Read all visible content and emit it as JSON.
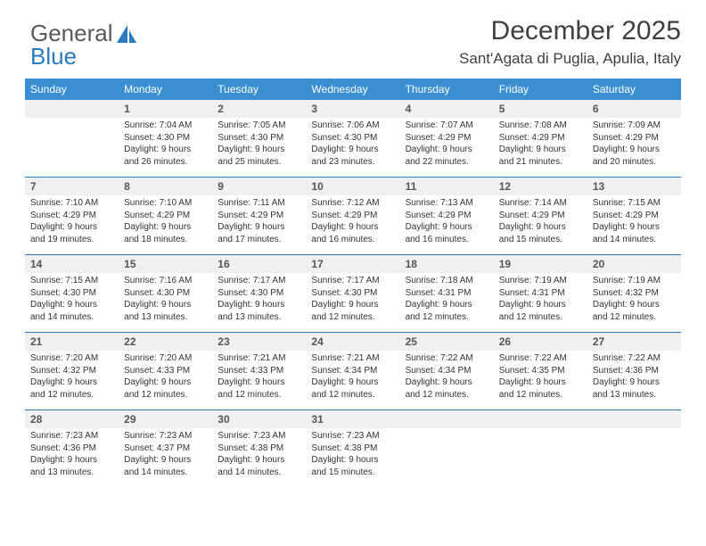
{
  "logo": {
    "text_a": "General",
    "text_b": "Blue"
  },
  "header": {
    "month": "December 2025",
    "location": "Sant'Agata di Puglia, Apulia, Italy"
  },
  "colors": {
    "accent": "#3a8fd0",
    "border": "#2a7ac0",
    "daynum_bg": "#f0f0f0",
    "text": "#333333"
  },
  "dayNames": [
    "Sunday",
    "Monday",
    "Tuesday",
    "Wednesday",
    "Thursday",
    "Friday",
    "Saturday"
  ],
  "weeks": [
    [
      {
        "n": "",
        "sr": "",
        "ss": "",
        "dl1": "",
        "dl2": ""
      },
      {
        "n": "1",
        "sr": "Sunrise: 7:04 AM",
        "ss": "Sunset: 4:30 PM",
        "dl1": "Daylight: 9 hours",
        "dl2": "and 26 minutes."
      },
      {
        "n": "2",
        "sr": "Sunrise: 7:05 AM",
        "ss": "Sunset: 4:30 PM",
        "dl1": "Daylight: 9 hours",
        "dl2": "and 25 minutes."
      },
      {
        "n": "3",
        "sr": "Sunrise: 7:06 AM",
        "ss": "Sunset: 4:30 PM",
        "dl1": "Daylight: 9 hours",
        "dl2": "and 23 minutes."
      },
      {
        "n": "4",
        "sr": "Sunrise: 7:07 AM",
        "ss": "Sunset: 4:29 PM",
        "dl1": "Daylight: 9 hours",
        "dl2": "and 22 minutes."
      },
      {
        "n": "5",
        "sr": "Sunrise: 7:08 AM",
        "ss": "Sunset: 4:29 PM",
        "dl1": "Daylight: 9 hours",
        "dl2": "and 21 minutes."
      },
      {
        "n": "6",
        "sr": "Sunrise: 7:09 AM",
        "ss": "Sunset: 4:29 PM",
        "dl1": "Daylight: 9 hours",
        "dl2": "and 20 minutes."
      }
    ],
    [
      {
        "n": "7",
        "sr": "Sunrise: 7:10 AM",
        "ss": "Sunset: 4:29 PM",
        "dl1": "Daylight: 9 hours",
        "dl2": "and 19 minutes."
      },
      {
        "n": "8",
        "sr": "Sunrise: 7:10 AM",
        "ss": "Sunset: 4:29 PM",
        "dl1": "Daylight: 9 hours",
        "dl2": "and 18 minutes."
      },
      {
        "n": "9",
        "sr": "Sunrise: 7:11 AM",
        "ss": "Sunset: 4:29 PM",
        "dl1": "Daylight: 9 hours",
        "dl2": "and 17 minutes."
      },
      {
        "n": "10",
        "sr": "Sunrise: 7:12 AM",
        "ss": "Sunset: 4:29 PM",
        "dl1": "Daylight: 9 hours",
        "dl2": "and 16 minutes."
      },
      {
        "n": "11",
        "sr": "Sunrise: 7:13 AM",
        "ss": "Sunset: 4:29 PM",
        "dl1": "Daylight: 9 hours",
        "dl2": "and 16 minutes."
      },
      {
        "n": "12",
        "sr": "Sunrise: 7:14 AM",
        "ss": "Sunset: 4:29 PM",
        "dl1": "Daylight: 9 hours",
        "dl2": "and 15 minutes."
      },
      {
        "n": "13",
        "sr": "Sunrise: 7:15 AM",
        "ss": "Sunset: 4:29 PM",
        "dl1": "Daylight: 9 hours",
        "dl2": "and 14 minutes."
      }
    ],
    [
      {
        "n": "14",
        "sr": "Sunrise: 7:15 AM",
        "ss": "Sunset: 4:30 PM",
        "dl1": "Daylight: 9 hours",
        "dl2": "and 14 minutes."
      },
      {
        "n": "15",
        "sr": "Sunrise: 7:16 AM",
        "ss": "Sunset: 4:30 PM",
        "dl1": "Daylight: 9 hours",
        "dl2": "and 13 minutes."
      },
      {
        "n": "16",
        "sr": "Sunrise: 7:17 AM",
        "ss": "Sunset: 4:30 PM",
        "dl1": "Daylight: 9 hours",
        "dl2": "and 13 minutes."
      },
      {
        "n": "17",
        "sr": "Sunrise: 7:17 AM",
        "ss": "Sunset: 4:30 PM",
        "dl1": "Daylight: 9 hours",
        "dl2": "and 12 minutes."
      },
      {
        "n": "18",
        "sr": "Sunrise: 7:18 AM",
        "ss": "Sunset: 4:31 PM",
        "dl1": "Daylight: 9 hours",
        "dl2": "and 12 minutes."
      },
      {
        "n": "19",
        "sr": "Sunrise: 7:19 AM",
        "ss": "Sunset: 4:31 PM",
        "dl1": "Daylight: 9 hours",
        "dl2": "and 12 minutes."
      },
      {
        "n": "20",
        "sr": "Sunrise: 7:19 AM",
        "ss": "Sunset: 4:32 PM",
        "dl1": "Daylight: 9 hours",
        "dl2": "and 12 minutes."
      }
    ],
    [
      {
        "n": "21",
        "sr": "Sunrise: 7:20 AM",
        "ss": "Sunset: 4:32 PM",
        "dl1": "Daylight: 9 hours",
        "dl2": "and 12 minutes."
      },
      {
        "n": "22",
        "sr": "Sunrise: 7:20 AM",
        "ss": "Sunset: 4:33 PM",
        "dl1": "Daylight: 9 hours",
        "dl2": "and 12 minutes."
      },
      {
        "n": "23",
        "sr": "Sunrise: 7:21 AM",
        "ss": "Sunset: 4:33 PM",
        "dl1": "Daylight: 9 hours",
        "dl2": "and 12 minutes."
      },
      {
        "n": "24",
        "sr": "Sunrise: 7:21 AM",
        "ss": "Sunset: 4:34 PM",
        "dl1": "Daylight: 9 hours",
        "dl2": "and 12 minutes."
      },
      {
        "n": "25",
        "sr": "Sunrise: 7:22 AM",
        "ss": "Sunset: 4:34 PM",
        "dl1": "Daylight: 9 hours",
        "dl2": "and 12 minutes."
      },
      {
        "n": "26",
        "sr": "Sunrise: 7:22 AM",
        "ss": "Sunset: 4:35 PM",
        "dl1": "Daylight: 9 hours",
        "dl2": "and 12 minutes."
      },
      {
        "n": "27",
        "sr": "Sunrise: 7:22 AM",
        "ss": "Sunset: 4:36 PM",
        "dl1": "Daylight: 9 hours",
        "dl2": "and 13 minutes."
      }
    ],
    [
      {
        "n": "28",
        "sr": "Sunrise: 7:23 AM",
        "ss": "Sunset: 4:36 PM",
        "dl1": "Daylight: 9 hours",
        "dl2": "and 13 minutes."
      },
      {
        "n": "29",
        "sr": "Sunrise: 7:23 AM",
        "ss": "Sunset: 4:37 PM",
        "dl1": "Daylight: 9 hours",
        "dl2": "and 14 minutes."
      },
      {
        "n": "30",
        "sr": "Sunrise: 7:23 AM",
        "ss": "Sunset: 4:38 PM",
        "dl1": "Daylight: 9 hours",
        "dl2": "and 14 minutes."
      },
      {
        "n": "31",
        "sr": "Sunrise: 7:23 AM",
        "ss": "Sunset: 4:38 PM",
        "dl1": "Daylight: 9 hours",
        "dl2": "and 15 minutes."
      },
      {
        "n": "",
        "sr": "",
        "ss": "",
        "dl1": "",
        "dl2": ""
      },
      {
        "n": "",
        "sr": "",
        "ss": "",
        "dl1": "",
        "dl2": ""
      },
      {
        "n": "",
        "sr": "",
        "ss": "",
        "dl1": "",
        "dl2": ""
      }
    ]
  ]
}
